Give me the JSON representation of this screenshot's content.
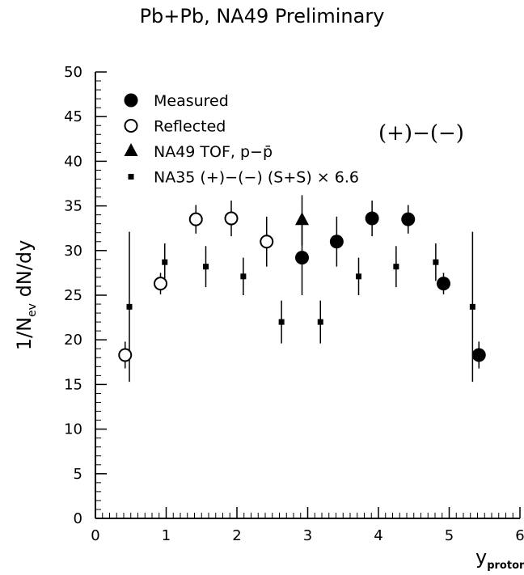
{
  "title": "Pb+Pb, NA49 Preliminary",
  "chart_data": {
    "type": "scatter",
    "ylabel_main": "1/N",
    "ylabel_sub": "ev",
    "ylabel_tail": " dN/dy",
    "xlabel_main": "y",
    "xlabel_sub": "proton",
    "xlim": [
      0,
      6
    ],
    "ylim": [
      0,
      50
    ],
    "xticks": [
      0,
      1,
      2,
      3,
      4,
      5,
      6
    ],
    "yticks": [
      0,
      5,
      10,
      15,
      20,
      25,
      30,
      35,
      40,
      45,
      50
    ],
    "annotation": "(+)−(−)",
    "legend_placement": "top-left",
    "series": [
      {
        "name": "Measured",
        "marker": "filled-circle",
        "points": [
          {
            "x": 2.92,
            "y": 29.2,
            "err": 4.2
          },
          {
            "x": 3.41,
            "y": 31.0,
            "err": 2.8
          },
          {
            "x": 3.91,
            "y": 33.6,
            "err": 2.0
          },
          {
            "x": 4.42,
            "y": 33.5,
            "err": 1.6
          },
          {
            "x": 4.92,
            "y": 26.3,
            "err": 1.2
          },
          {
            "x": 5.42,
            "y": 18.3,
            "err": 1.5
          }
        ]
      },
      {
        "name": "Reflected",
        "marker": "open-circle",
        "points": [
          {
            "x": 0.42,
            "y": 18.3,
            "err": 1.5
          },
          {
            "x": 0.92,
            "y": 26.3,
            "err": 1.2
          },
          {
            "x": 1.42,
            "y": 33.5,
            "err": 1.6
          },
          {
            "x": 1.92,
            "y": 33.6,
            "err": 2.0
          },
          {
            "x": 2.42,
            "y": 31.0,
            "err": 2.8
          }
        ]
      },
      {
        "name": "NA49 TOF, p−p̄",
        "marker": "filled-triangle",
        "points": [
          {
            "x": 2.92,
            "y": 33.4,
            "err": 2.8
          }
        ]
      },
      {
        "name": "NA35 (+)−(−) (S+S) × 6.6",
        "marker": "filled-square",
        "points": [
          {
            "x": 0.48,
            "y": 23.7,
            "err": 8.4
          },
          {
            "x": 0.98,
            "y": 28.7,
            "err": 2.1
          },
          {
            "x": 1.56,
            "y": 28.2,
            "err": 2.3
          },
          {
            "x": 2.09,
            "y": 27.1,
            "err": 2.1
          },
          {
            "x": 2.63,
            "y": 22.0,
            "err": 2.4
          },
          {
            "x": 3.18,
            "y": 22.0,
            "err": 2.4
          },
          {
            "x": 3.72,
            "y": 27.1,
            "err": 2.1
          },
          {
            "x": 4.25,
            "y": 28.2,
            "err": 2.3
          },
          {
            "x": 4.81,
            "y": 28.7,
            "err": 2.1
          },
          {
            "x": 5.33,
            "y": 23.7,
            "err": 8.4
          }
        ]
      }
    ]
  }
}
